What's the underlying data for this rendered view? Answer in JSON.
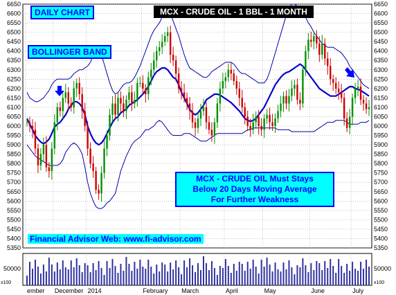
{
  "chart_data": {
    "type": "candlestick",
    "title": "MCX - CRUDE OIL - 1 BBL - 1 MONTH",
    "chart_label": "DAILY CHART",
    "indicator_label": "BOLLINGER BAND",
    "annotation": [
      "MCX - CRUDE OIL Must Stays",
      "Below 20 Days Moving Average",
      "For Further Weakness"
    ],
    "website": "Financial Advisor Web: www.fi-advisor.com",
    "ylim": [
      5350,
      6650
    ],
    "yticks": [
      6650,
      6600,
      6550,
      6500,
      6450,
      6400,
      6350,
      6300,
      6250,
      6200,
      6150,
      6100,
      6050,
      6000,
      5950,
      5900,
      5850,
      5800,
      5750,
      5700,
      5650,
      5600,
      5550,
      5500,
      5450,
      5400,
      5350
    ],
    "volume_ticks": [
      "50000"
    ],
    "volume_unit": "x100",
    "x_labels": [
      {
        "label": "ember",
        "i": 0
      },
      {
        "label": "December",
        "i": 10
      },
      {
        "label": "2014",
        "i": 22
      },
      {
        "label": "February",
        "i": 42
      },
      {
        "label": "March",
        "i": 56
      },
      {
        "label": "April",
        "i": 72
      },
      {
        "label": "May",
        "i": 86
      },
      {
        "label": "June",
        "i": 103
      },
      {
        "label": "July",
        "i": 118
      }
    ],
    "closes": [
      6020,
      6000,
      5980,
      5880,
      5790,
      5850,
      5900,
      5780,
      5760,
      5880,
      6020,
      6100,
      6080,
      6150,
      6180,
      6120,
      6100,
      6200,
      6230,
      6170,
      6080,
      6000,
      5880,
      5800,
      5760,
      5660,
      5640,
      5750,
      5880,
      5950,
      6060,
      6120,
      6060,
      6150,
      6120,
      6080,
      6140,
      6180,
      6120,
      6140,
      6230,
      6230,
      6200,
      6170,
      6260,
      6300,
      6350,
      6400,
      6420,
      6450,
      6480,
      6500,
      6380,
      6350,
      6280,
      6200,
      6180,
      6150,
      6120,
      6080,
      6020,
      5990,
      6040,
      6080,
      6100,
      6020,
      5980,
      5950,
      6020,
      6120,
      6200,
      6240,
      6260,
      6300,
      6280,
      6240,
      6200,
      6150,
      6100,
      6050,
      6000,
      5980,
      6020,
      6050,
      6000,
      5980,
      6040,
      6060,
      6020,
      6000,
      6040,
      6080,
      6120,
      6160,
      6120,
      6160,
      6200,
      6220,
      6140,
      6120,
      6300,
      6400,
      6460,
      6450,
      6480,
      6440,
      6380,
      6440,
      6360,
      6320,
      6250,
      6230,
      6200,
      6180,
      6150,
      6040,
      5990,
      6050,
      6150,
      6200,
      6210,
      6140,
      6120,
      6090,
      6100
    ],
    "ma20": [
      6040,
      6010,
      5980,
      5950,
      5930,
      5915,
      5905,
      5915,
      5930,
      5960,
      5995,
      6010,
      6020,
      6040,
      6060,
      6090,
      6110,
      6130,
      6130,
      6120,
      6100,
      6060,
      6000,
      5960,
      5930,
      5910,
      5900,
      5910,
      5930,
      5960,
      5990,
      6020,
      6040,
      6050,
      6070,
      6080,
      6090,
      6110,
      6120,
      6130,
      6140,
      6155,
      6170,
      6190,
      6210,
      6240,
      6270,
      6290,
      6300,
      6310,
      6310,
      6300,
      6280,
      6260,
      6250,
      6220,
      6180,
      6150,
      6120,
      6090,
      6070,
      6060,
      6070,
      6090,
      6110,
      6140,
      6150,
      6160,
      6170,
      6170,
      6165,
      6155,
      6145,
      6135,
      6125,
      6110,
      6095,
      6080,
      6060,
      6040,
      6030,
      6025,
      6030,
      6040,
      6060,
      6080,
      6100,
      6130,
      6160,
      6190,
      6220,
      6240,
      6260,
      6275,
      6285,
      6290,
      6300,
      6310,
      6320,
      6330,
      6320,
      6300,
      6280,
      6260,
      6240,
      6220,
      6200,
      6190,
      6180,
      6170,
      6160,
      6160,
      6160,
      6170,
      6180,
      6190,
      6200,
      6210,
      6210,
      6200,
      6195,
      6190,
      6180,
      6170,
      6160
    ],
    "bb_upper": [
      6180,
      6150,
      6140,
      6130,
      6130,
      6140,
      6150,
      6170,
      6190,
      6220,
      6240,
      6250,
      6250,
      6250,
      6250,
      6250,
      6260,
      6280,
      6290,
      6300,
      6300,
      6310,
      6320,
      6340,
      6380,
      6400,
      6400,
      6380,
      6330,
      6280,
      6230,
      6190,
      6170,
      6180,
      6200,
      6220,
      6230,
      6230,
      6240,
      6260,
      6290,
      6320,
      6360,
      6400,
      6440,
      6480,
      6510,
      6530,
      6550,
      6580,
      6600,
      6620,
      6600,
      6560,
      6520,
      6480,
      6430,
      6380,
      6340,
      6310,
      6300,
      6290,
      6280,
      6270,
      6260,
      6260,
      6270,
      6290,
      6300,
      6310,
      6320,
      6330,
      6340,
      6340,
      6340,
      6330,
      6310,
      6290,
      6280,
      6280,
      6270,
      6260,
      6250,
      6240,
      6230,
      6230,
      6230,
      6250,
      6290,
      6340,
      6390,
      6440,
      6490,
      6540,
      6590,
      6630,
      6650,
      6650,
      6640,
      6620,
      6600,
      6580,
      6550,
      6530,
      6500,
      6480,
      6460,
      6440,
      6430,
      6420,
      6420,
      6420,
      6410,
      6400,
      6390,
      6370,
      6350,
      6320,
      6300,
      6280,
      6260,
      6240,
      6220,
      6210,
      6200
    ],
    "bb_lower": [
      5900,
      5880,
      5860,
      5840,
      5830,
      5820,
      5810,
      5800,
      5790,
      5790,
      5790,
      5790,
      5800,
      5820,
      5860,
      5880,
      5900,
      5910,
      5900,
      5880,
      5850,
      5780,
      5700,
      5640,
      5600,
      5570,
      5560,
      5560,
      5570,
      5590,
      5600,
      5620,
      5640,
      5700,
      5760,
      5800,
      5840,
      5870,
      5900,
      5920,
      5930,
      5940,
      5960,
      5980,
      5980,
      5990,
      6000,
      6020,
      6030,
      6020,
      6000,
      5980,
      5960,
      5950,
      5950,
      5950,
      5950,
      5960,
      5960,
      5960,
      5950,
      5940,
      5930,
      5920,
      5920,
      5920,
      5930,
      5940,
      5950,
      5960,
      5960,
      5960,
      5960,
      5960,
      5960,
      5960,
      5960,
      5960,
      5960,
      5970,
      5980,
      5980,
      5990,
      5990,
      5990,
      5990,
      5990,
      5990,
      5990,
      5990,
      5990,
      5980,
      5980,
      5980,
      5980,
      5980,
      5970,
      5970,
      5970,
      5970,
      5970,
      5970,
      5970,
      5970,
      5970,
      5980,
      5990,
      6000,
      6010,
      6020,
      6020,
      6020,
      6030,
      6030,
      6030,
      6030,
      6020,
      6010,
      6010,
      6010,
      6010,
      6020,
      6020,
      6020,
      6030
    ]
  }
}
